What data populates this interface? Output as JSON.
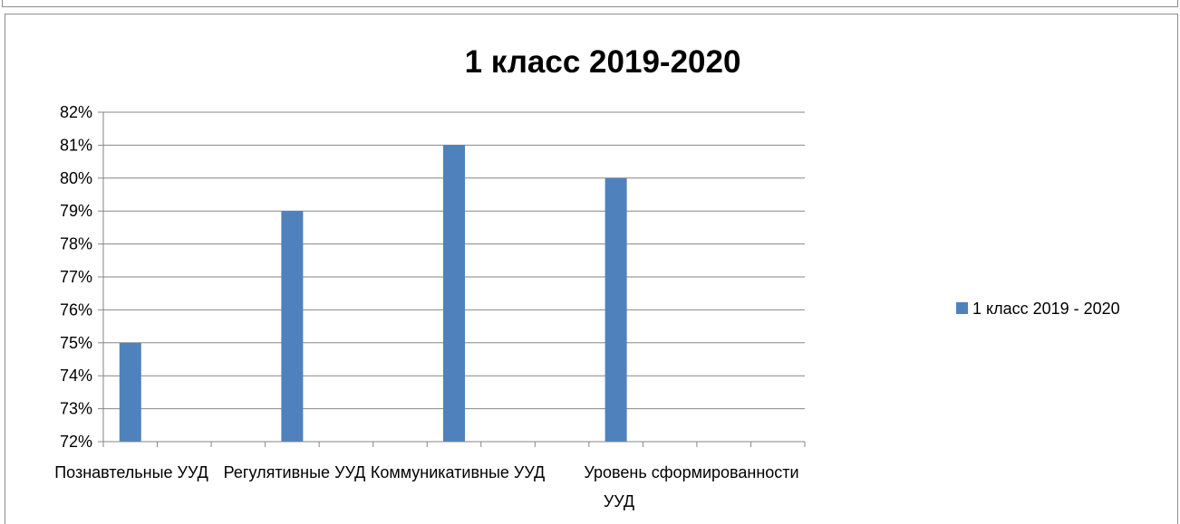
{
  "chart_data": {
    "type": "bar",
    "title": "1 класс 2019-2020",
    "categories": [
      "Познавтельные УУД",
      "Регулятивные УУД",
      "Коммуникативные УУД",
      "Уровень сформированности УУД"
    ],
    "series": [
      {
        "name": "1 класс 2019 - 2020",
        "values": [
          0.75,
          0.79,
          0.81,
          0.8
        ]
      }
    ],
    "y_ticks": [
      "72%",
      "73%",
      "74%",
      "75%",
      "76%",
      "77%",
      "78%",
      "79%",
      "80%",
      "81%",
      "82%"
    ],
    "ylim": [
      0.72,
      0.82
    ],
    "grid": true,
    "legend": "right",
    "colors": {
      "bar": "#4f81bd",
      "grid": "#868686",
      "axis": "#868686"
    }
  }
}
